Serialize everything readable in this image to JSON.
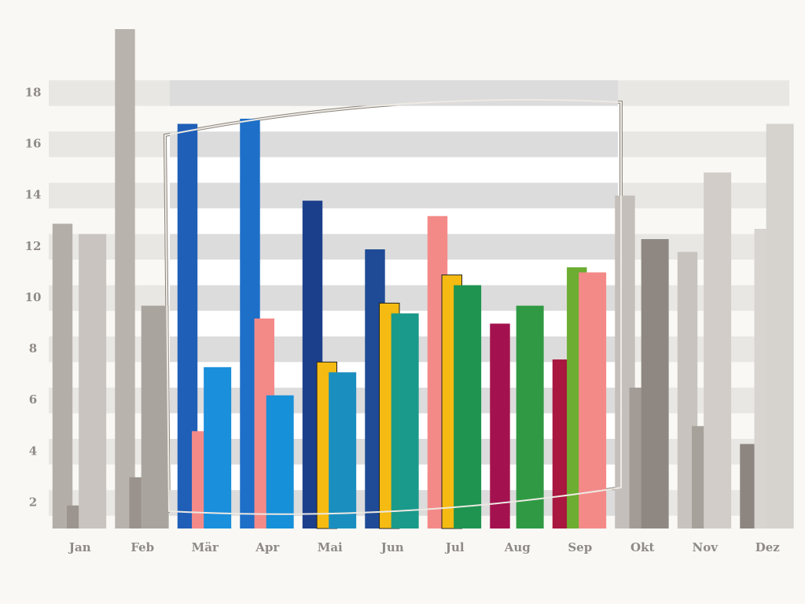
{
  "chart_data": {
    "type": "bar",
    "categories": [
      "Jan",
      "Feb",
      "Mär",
      "Apr",
      "Mai",
      "Jun",
      "Jul",
      "Aug",
      "Sep",
      "Okt",
      "Nov",
      "Dez"
    ],
    "series": [
      {
        "colors": [
          "#b4aea8",
          "#b9b3ad",
          "#1f5fb8",
          "#1d6fc8",
          "#1c3f8c",
          "#1f4b96",
          "#f48a88",
          "#a3124f",
          "#a8183f",
          "#c4bfba",
          "#c8c3be",
          "#8d8680"
        ],
        "values": [
          12.9,
          20.5,
          16.8,
          17.0,
          13.8,
          11.9,
          13.2,
          9.0,
          7.6,
          14.0,
          11.8,
          4.3
        ]
      },
      {
        "colors": [
          "#9c958f",
          "#9a938d",
          "#f48a88",
          "#f48a88",
          "#f5bb12",
          "#f5bb12",
          "#f5bb12",
          "#2e8f3e",
          "#6cad32",
          "#a39c96",
          "#a7a19b",
          "#d8d4cf"
        ],
        "values": [
          1.9,
          3.0,
          4.8,
          9.2,
          7.5,
          9.8,
          10.9,
          null,
          11.2,
          6.5,
          5.0,
          12.7
        ]
      },
      {
        "colors": [
          "#c9c4bf",
          "#aaa49e",
          "#1a8fdc",
          "#1690d8",
          "#1a8fbf",
          "#1a9a8a",
          "#1e9450",
          "#2f9a43",
          "#f48a88",
          "#8f8882",
          "#d2cdc8",
          "#d6d2cd"
        ],
        "values": [
          12.5,
          9.7,
          7.3,
          6.2,
          7.1,
          9.4,
          10.5,
          9.7,
          11.0,
          12.3,
          14.9,
          16.8
        ]
      }
    ],
    "ylim": [
      1,
      20.5
    ],
    "yticks": [
      2,
      4,
      6,
      8,
      10,
      12,
      14,
      16,
      18
    ],
    "grid": true
  }
}
